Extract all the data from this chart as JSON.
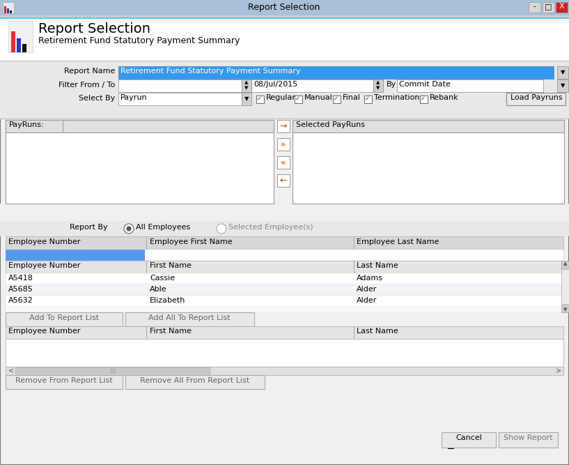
{
  "title_bar_text": "Report Selection",
  "title_bar_bg": "#a8c0d8",
  "window_bg": "#f0f0f0",
  "header_title": "Report Selection",
  "header_subtitle": "Retirement Fund Statutory Payment Summary",
  "report_name_value": "Retirement Fund Statutory Payment Summary",
  "filter_from_value": "",
  "filter_to_value": "08/Jul/2015",
  "filter_by_value": "Commit Date",
  "select_by_value": "Payrun",
  "checkboxes": [
    "Regular",
    "Manual",
    "Final",
    "Termination",
    "Rebank"
  ],
  "load_payruns_btn": "Load Payruns",
  "payruns_label": "PayRuns:",
  "selected_payruns_label": "Selected PayRuns",
  "report_by_label": "Report By",
  "radio1": "All Employees",
  "radio2": "Selected Employee(s)",
  "col_headers1": [
    "Employee Number",
    "Employee First Name",
    "Employee Last Name"
  ],
  "col_headers2": [
    "Employee Number",
    "First Name",
    "Last Name"
  ],
  "employees": [
    [
      "A5418",
      "Cassie",
      "Adams"
    ],
    [
      "A5685",
      "Able",
      "Alder"
    ],
    [
      "A5632",
      "Elizabeth",
      "Alder"
    ]
  ],
  "col_headers3": [
    "Employee Number",
    "First Name",
    "Last Name"
  ],
  "btn_add": "Add To Report List",
  "btn_add_all": "Add All To Report List",
  "btn_remove": "Remove From Report List",
  "btn_remove_all": "Remove All From Report List",
  "btn_cancel": "Cancel",
  "btn_show": "Show Report",
  "arrow_color": "#c85000",
  "blue_highlight": "#3399ee",
  "scrollbar_gray": "#c0c0c0",
  "border_color": "#808080",
  "light_gray": "#f0f0f0",
  "mid_gray": "#e8e8e8",
  "dark_gray": "#a0a0a0",
  "form_bg": "#e8e8e8",
  "header_line_color": "#5bc8f0",
  "white": "#ffffff",
  "panel_header_bg": "#e0e0e0",
  "table_header_bg": "#d8d8d8",
  "row_bg1": "#ffffff",
  "row_bg2": "#f0f4f8"
}
